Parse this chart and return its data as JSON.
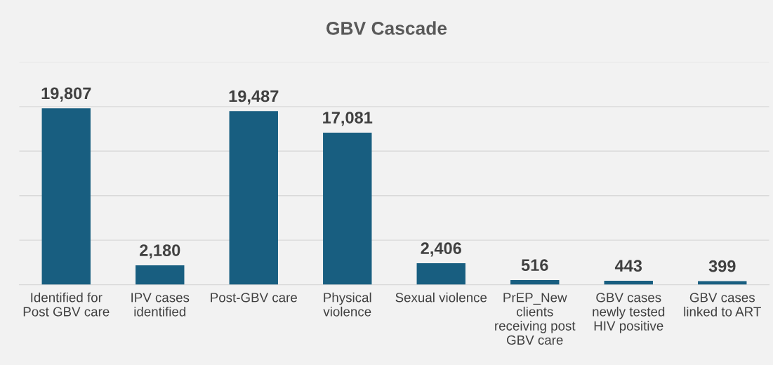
{
  "chart_data": {
    "type": "bar",
    "title": "GBV Cascade",
    "categories": [
      "Identified for\nPost GBV care",
      "IPV cases\nidentified",
      "Post-GBV care",
      "Physical\nviolence",
      "Sexual violence",
      "PrEP_New\nclients\nreceiving post\nGBV care",
      "GBV cases\nnewly tested\nHIV positive",
      "GBV cases\nlinked to ART"
    ],
    "values": [
      19807,
      2180,
      19487,
      17081,
      2406,
      516,
      443,
      399
    ],
    "value_labels": [
      "19,807",
      "2,180",
      "19,487",
      "17,081",
      "2,406",
      "516",
      "443",
      "399"
    ],
    "color": "#185e80",
    "ylim": [
      0,
      25000
    ],
    "yticks": [
      {
        "value": 0,
        "label": null
      },
      {
        "value": 5000,
        "label": null
      },
      {
        "value": 10000,
        "label": null
      },
      {
        "value": 15000,
        "label": null
      },
      {
        "value": 20000,
        "label": null
      },
      {
        "value": 25000,
        "label": null
      }
    ],
    "grid": "y",
    "tick_labels": "x"
  }
}
